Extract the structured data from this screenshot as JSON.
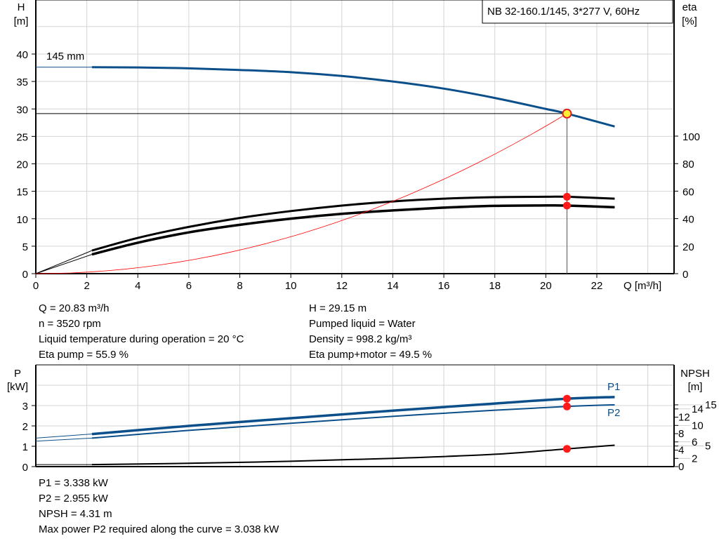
{
  "title_box": "NB 32-160.1/145, 3*277 V, 60Hz",
  "chart_data": [
    {
      "type": "line",
      "name": "pump-curve",
      "xlabel": "Q [m³/h]",
      "ylabel_left": [
        "H",
        "[m]"
      ],
      "ylabel_right": [
        "eta",
        "[%]"
      ],
      "xlim": [
        0,
        25
      ],
      "ylim_left": [
        0,
        50
      ],
      "ylim_right": [
        0,
        100
      ],
      "x_ticks": [
        0,
        2,
        4,
        6,
        8,
        10,
        12,
        14,
        16,
        18,
        20,
        22
      ],
      "y_ticks_left": [
        0,
        5,
        10,
        15,
        20,
        25,
        30,
        35,
        40
      ],
      "y_ticks_right": [
        0,
        20,
        40,
        60,
        80,
        100
      ],
      "grid": true,
      "annotation": "145 mm",
      "duty_point": {
        "Q": 20.83,
        "H": 29.15,
        "eta_pump": 55.9,
        "eta_pump_motor": 49.5
      },
      "series": [
        {
          "axis": "left",
          "color": "#0b4f8a",
          "x": [
            2.2,
            4,
            6,
            8,
            10,
            12,
            14,
            16,
            18,
            20,
            20.83,
            22.7
          ],
          "y": [
            37.6,
            37.55,
            37.4,
            37.1,
            36.7,
            36.0,
            35.0,
            33.7,
            32.0,
            30.0,
            29.15,
            26.8
          ],
          "extension": {
            "x": [
              0,
              2.2
            ],
            "y": [
              37.6,
              37.6
            ]
          }
        },
        {
          "axis": "right",
          "color": "#000000",
          "x": [
            2.2,
            4,
            6,
            8,
            10,
            12,
            14,
            16,
            18,
            20,
            20.83,
            22.7
          ],
          "y": [
            16.8,
            26,
            34,
            40.5,
            45.5,
            49.5,
            52.5,
            54.5,
            55.6,
            55.9,
            55.9,
            54.5
          ],
          "extension": {
            "x": [
              0,
              2.2
            ],
            "y": [
              0,
              16.8
            ]
          }
        },
        {
          "axis": "right",
          "color": "#000000",
          "x": [
            2.2,
            4,
            6,
            8,
            10,
            12,
            14,
            16,
            18,
            20,
            20.83,
            22.7
          ],
          "y": [
            14,
            22.5,
            30,
            35.5,
            40,
            43.5,
            46,
            48,
            49.3,
            49.6,
            49.5,
            48.3
          ],
          "extension": {
            "x": [
              0,
              2.2
            ],
            "y": [
              0,
              14
            ]
          }
        },
        {
          "axis": "left",
          "color": "#ff0000",
          "function": "system",
          "x": [
            0,
            20.83
          ],
          "y": [
            0,
            29.15
          ]
        }
      ]
    },
    {
      "type": "line",
      "name": "power-npsh-curve",
      "ylabel_left": [
        "P",
        "[kW]"
      ],
      "ylabel_right": [
        "NPSH",
        "[m]"
      ],
      "xlim": [
        0,
        25
      ],
      "ylim_left": [
        0,
        5
      ],
      "y_ticks_left": [
        0,
        1,
        2,
        3
      ],
      "y_ticks_right": [
        0,
        2,
        4,
        5,
        6,
        8,
        10,
        12,
        14,
        15
      ],
      "grid": true,
      "series": [
        {
          "name": "P1",
          "axis": "left",
          "color": "#0b4f8a",
          "x": [
            2.2,
            6,
            10,
            14,
            18,
            20.83,
            22.7
          ],
          "y": [
            1.6,
            2.0,
            2.38,
            2.75,
            3.1,
            3.338,
            3.42
          ],
          "extension": {
            "x": [
              0,
              2.2
            ],
            "y": [
              1.4,
              1.6
            ]
          }
        },
        {
          "name": "P2",
          "axis": "left",
          "color": "#0b4f8a",
          "x": [
            2.2,
            6,
            10,
            14,
            18,
            20.83,
            22.7
          ],
          "y": [
            1.4,
            1.78,
            2.13,
            2.47,
            2.77,
            2.955,
            3.038
          ],
          "extension": {
            "x": [
              0,
              2.2
            ],
            "y": [
              1.25,
              1.4
            ]
          }
        },
        {
          "axis": "right",
          "color": "#000000",
          "x": [
            2.2,
            6,
            10,
            14,
            18,
            20.83,
            22.7
          ],
          "y": [
            0.5,
            0.8,
            1.3,
            2.0,
            3.0,
            4.31,
            5.2
          ],
          "extension": {
            "x": [
              0,
              2.2
            ],
            "y": [
              0.5,
              0.5
            ]
          }
        }
      ],
      "duty_points": {
        "P1": 3.338,
        "P2": 2.955,
        "NPSH": 4.31,
        "Q": 20.83
      }
    }
  ],
  "info_top": {
    "left": [
      "Q = 20.83 m³/h",
      "n = 3520 rpm",
      "Liquid temperature during operation = 20 °C",
      "Eta pump = 55.9 %"
    ],
    "right": [
      "H = 29.15 m",
      "Pumped liquid = Water",
      "Density = 998.2 kg/m³",
      "Eta pump+motor = 49.5 %"
    ]
  },
  "info_bottom": [
    "P1 = 3.338 kW",
    "P2 = 2.955 kW",
    "NPSH = 4.31 m",
    "Max power P2 required along the curve = 3.038 kW"
  ]
}
